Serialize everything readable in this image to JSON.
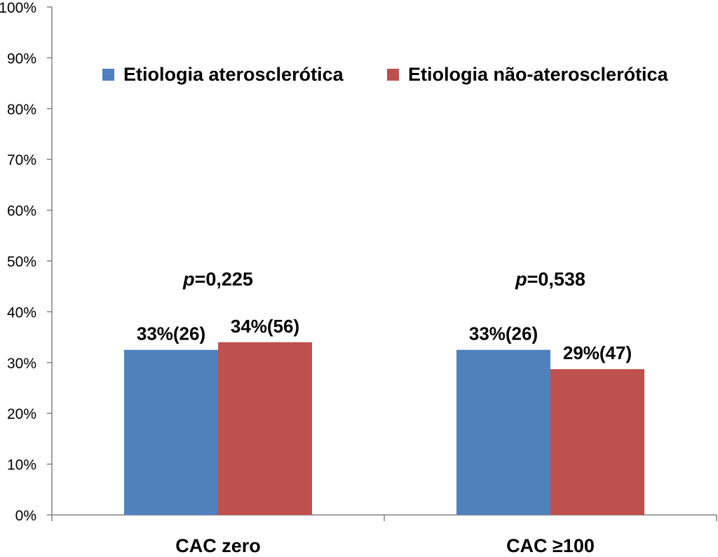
{
  "chart_data": {
    "type": "bar",
    "categories": [
      "CAC zero",
      "CAC ≥100"
    ],
    "series": [
      {
        "name": "Etiologia aterosclerótica",
        "color": "#4f81bd",
        "values": [
          32.5,
          32.5
        ],
        "labels": [
          "33%(26)",
          "33%(26)"
        ]
      },
      {
        "name": "Etiologia não-aterosclerótica",
        "color": "#c0504d",
        "values": [
          34,
          28.7
        ],
        "labels": [
          "34%(56)",
          "29%(47)"
        ]
      }
    ],
    "annotations": [
      {
        "prefix": "p",
        "text": "=0,225"
      },
      {
        "prefix": "p",
        "text": "=0,538"
      }
    ],
    "yticks": [
      "0%",
      "10%",
      "20%",
      "30%",
      "40%",
      "50%",
      "60%",
      "70%",
      "80%",
      "90%",
      "100%"
    ],
    "ylim": [
      0,
      100
    ],
    "unit": "%",
    "title": "",
    "xlabel": "",
    "ylabel": "",
    "legend_position": "top",
    "grid": false
  }
}
